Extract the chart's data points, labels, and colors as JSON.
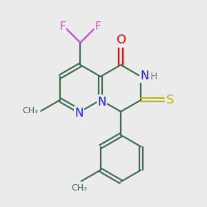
{
  "bg_color": "#ebebeb",
  "bond_color": "#3d6b50",
  "bond_width": 1.6,
  "atom_colors": {
    "N": "#1a1aff",
    "O": "#ff0000",
    "S": "#b8b800",
    "F": "#cc44cc",
    "H": "#888888",
    "C": "#3d6b50"
  },
  "font_size": 11
}
